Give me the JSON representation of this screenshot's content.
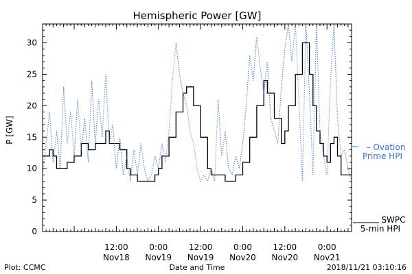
{
  "chart_data": {
    "type": "line",
    "title": "Hemispheric Power [GW]",
    "xlabel": "Date and Time",
    "ylabel": "P [GW]",
    "ylim": [
      0,
      33
    ],
    "yticks": [
      0,
      5,
      10,
      15,
      20,
      25,
      30
    ],
    "xlim": [
      "2018-11-17 15:00",
      "2018-11-21 07:00"
    ],
    "xticks": [
      {
        "x": "2018-11-18 12:00",
        "line1": "12:00",
        "line2": "Nov18"
      },
      {
        "x": "2018-11-19 00:00",
        "line1": "0:00",
        "line2": "Nov19"
      },
      {
        "x": "2018-11-19 12:00",
        "line1": "12:00",
        "line2": "Nov19"
      },
      {
        "x": "2018-11-20 00:00",
        "line1": "0:00",
        "line2": "Nov20"
      },
      {
        "x": "2018-11-20 12:00",
        "line1": "12:00",
        "line2": "Nov20"
      },
      {
        "x": "2018-11-21 00:00",
        "line1": "0:00",
        "line2": "Nov21"
      }
    ],
    "grid": false,
    "series": [
      {
        "name": "SWPC 5-min HPI",
        "style": "solid",
        "color": "#000000",
        "label_lines": [
          "SWPC",
          "5-min HPI"
        ],
        "points": [
          [
            "2018-11-17 15:00",
            12
          ],
          [
            "2018-11-17 17:00",
            13
          ],
          [
            "2018-11-17 18:00",
            12
          ],
          [
            "2018-11-17 19:00",
            10
          ],
          [
            "2018-11-17 22:00",
            11
          ],
          [
            "2018-11-18 00:00",
            12
          ],
          [
            "2018-11-18 02:00",
            14
          ],
          [
            "2018-11-18 04:00",
            13
          ],
          [
            "2018-11-18 06:00",
            14
          ],
          [
            "2018-11-18 09:00",
            16
          ],
          [
            "2018-11-18 10:00",
            14
          ],
          [
            "2018-11-18 12:00",
            14
          ],
          [
            "2018-11-18 13:00",
            13
          ],
          [
            "2018-11-18 15:00",
            10
          ],
          [
            "2018-11-18 16:00",
            9
          ],
          [
            "2018-11-18 18:00",
            8
          ],
          [
            "2018-11-18 23:00",
            9
          ],
          [
            "2018-11-19 00:00",
            10
          ],
          [
            "2018-11-19 01:00",
            12
          ],
          [
            "2018-11-19 03:00",
            15
          ],
          [
            "2018-11-19 05:00",
            19
          ],
          [
            "2018-11-19 07:00",
            22
          ],
          [
            "2018-11-19 08:00",
            23
          ],
          [
            "2018-11-19 10:00",
            20
          ],
          [
            "2018-11-19 12:00",
            15
          ],
          [
            "2018-11-19 14:00",
            10
          ],
          [
            "2018-11-19 15:00",
            9
          ],
          [
            "2018-11-19 18:00",
            9
          ],
          [
            "2018-11-19 19:00",
            8
          ],
          [
            "2018-11-19 22:00",
            9
          ],
          [
            "2018-11-20 00:00",
            11
          ],
          [
            "2018-11-20 02:00",
            15
          ],
          [
            "2018-11-20 04:00",
            20
          ],
          [
            "2018-11-20 06:00",
            24
          ],
          [
            "2018-11-20 07:00",
            22
          ],
          [
            "2018-11-20 09:00",
            18
          ],
          [
            "2018-11-20 11:00",
            14
          ],
          [
            "2018-11-20 12:00",
            16
          ],
          [
            "2018-11-20 13:00",
            20
          ],
          [
            "2018-11-20 15:00",
            25
          ],
          [
            "2018-11-20 17:00",
            30
          ],
          [
            "2018-11-20 19:00",
            25
          ],
          [
            "2018-11-20 20:00",
            20
          ],
          [
            "2018-11-20 21:00",
            16
          ],
          [
            "2018-11-20 22:00",
            14
          ],
          [
            "2018-11-20 23:00",
            12
          ],
          [
            "2018-11-21 00:00",
            11
          ],
          [
            "2018-11-21 01:00",
            14
          ],
          [
            "2018-11-21 02:00",
            15
          ],
          [
            "2018-11-21 03:00",
            12
          ],
          [
            "2018-11-21 04:00",
            9
          ],
          [
            "2018-11-21 06:00",
            9
          ],
          [
            "2018-11-21 07:00",
            10
          ]
        ]
      },
      {
        "name": "Ovation Prime HPI",
        "style": "dotted",
        "color": "#3a6fd8",
        "label_lines": [
          "– Ovation",
          "Prime HPI"
        ],
        "points": [
          [
            "2018-11-17 15:00",
            9
          ],
          [
            "2018-11-17 16:00",
            14
          ],
          [
            "2018-11-17 17:00",
            19
          ],
          [
            "2018-11-17 18:00",
            11
          ],
          [
            "2018-11-17 19:00",
            16
          ],
          [
            "2018-11-17 20:00",
            10
          ],
          [
            "2018-11-17 21:00",
            23
          ],
          [
            "2018-11-17 22:00",
            14
          ],
          [
            "2018-11-17 23:00",
            19
          ],
          [
            "2018-11-18 00:00",
            12
          ],
          [
            "2018-11-18 01:00",
            21
          ],
          [
            "2018-11-18 02:00",
            13
          ],
          [
            "2018-11-18 03:00",
            18
          ],
          [
            "2018-11-18 04:00",
            11
          ],
          [
            "2018-11-18 05:00",
            24
          ],
          [
            "2018-11-18 06:00",
            14
          ],
          [
            "2018-11-18 07:00",
            21
          ],
          [
            "2018-11-18 08:00",
            15
          ],
          [
            "2018-11-18 09:00",
            25
          ],
          [
            "2018-11-18 10:00",
            14
          ],
          [
            "2018-11-18 11:00",
            17
          ],
          [
            "2018-11-18 12:00",
            10
          ],
          [
            "2018-11-18 13:00",
            15
          ],
          [
            "2018-11-18 14:00",
            9
          ],
          [
            "2018-11-18 15:00",
            12
          ],
          [
            "2018-11-18 16:00",
            8
          ],
          [
            "2018-11-18 17:00",
            13
          ],
          [
            "2018-11-18 18:00",
            9
          ],
          [
            "2018-11-18 19:00",
            14
          ],
          [
            "2018-11-18 20:00",
            10
          ],
          [
            "2018-11-18 21:00",
            8
          ],
          [
            "2018-11-18 22:00",
            9
          ],
          [
            "2018-11-18 23:00",
            12
          ],
          [
            "2018-11-19 00:00",
            10
          ],
          [
            "2018-11-19 01:00",
            14
          ],
          [
            "2018-11-19 02:00",
            11
          ],
          [
            "2018-11-19 03:00",
            16
          ],
          [
            "2018-11-19 04:00",
            24
          ],
          [
            "2018-11-19 05:00",
            30
          ],
          [
            "2018-11-19 06:00",
            25
          ],
          [
            "2018-11-19 07:00",
            22
          ],
          [
            "2018-11-19 08:00",
            20
          ],
          [
            "2018-11-19 09:00",
            16
          ],
          [
            "2018-11-19 10:00",
            14
          ],
          [
            "2018-11-19 11:00",
            10
          ],
          [
            "2018-11-19 12:00",
            8
          ],
          [
            "2018-11-19 13:00",
            9
          ],
          [
            "2018-11-19 14:00",
            8
          ],
          [
            "2018-11-19 15:00",
            10
          ],
          [
            "2018-11-19 16:00",
            8
          ],
          [
            "2018-11-19 17:00",
            21
          ],
          [
            "2018-11-19 18:00",
            12
          ],
          [
            "2018-11-19 19:00",
            16
          ],
          [
            "2018-11-19 20:00",
            10
          ],
          [
            "2018-11-19 21:00",
            9
          ],
          [
            "2018-11-19 22:00",
            12
          ],
          [
            "2018-11-19 23:00",
            10
          ],
          [
            "2018-11-20 00:00",
            14
          ],
          [
            "2018-11-20 01:00",
            20
          ],
          [
            "2018-11-20 02:00",
            28
          ],
          [
            "2018-11-20 03:00",
            24
          ],
          [
            "2018-11-20 04:00",
            31
          ],
          [
            "2018-11-20 05:00",
            26
          ],
          [
            "2018-11-20 06:00",
            22
          ],
          [
            "2018-11-20 07:00",
            27
          ],
          [
            "2018-11-20 08:00",
            18
          ],
          [
            "2018-11-20 09:00",
            16
          ],
          [
            "2018-11-20 10:00",
            14
          ],
          [
            "2018-11-20 11:00",
            23
          ],
          [
            "2018-11-20 12:00",
            29
          ],
          [
            "2018-11-20 13:00",
            33
          ],
          [
            "2018-11-20 14:00",
            27
          ],
          [
            "2018-11-20 15:00",
            33
          ],
          [
            "2018-11-20 16:00",
            21
          ],
          [
            "2018-11-20 17:00",
            8
          ],
          [
            "2018-11-20 18:00",
            33
          ],
          [
            "2018-11-20 19:00",
            22
          ],
          [
            "2018-11-20 20:00",
            9
          ],
          [
            "2018-11-20 21:00",
            33
          ],
          [
            "2018-11-20 22:00",
            16
          ],
          [
            "2018-11-20 23:00",
            12
          ],
          [
            "2018-11-21 00:00",
            9
          ],
          [
            "2018-11-21 01:00",
            24
          ],
          [
            "2018-11-21 02:00",
            33
          ],
          [
            "2018-11-21 03:00",
            18
          ],
          [
            "2018-11-21 04:00",
            12
          ],
          [
            "2018-11-21 05:00",
            13
          ],
          [
            "2018-11-21 06:00",
            10
          ],
          [
            "2018-11-21 07:00",
            8
          ]
        ]
      }
    ]
  },
  "footer": {
    "left": "Plot: CCMC",
    "center": "Date and Time",
    "right": "2018/11/21 03:10:16"
  }
}
